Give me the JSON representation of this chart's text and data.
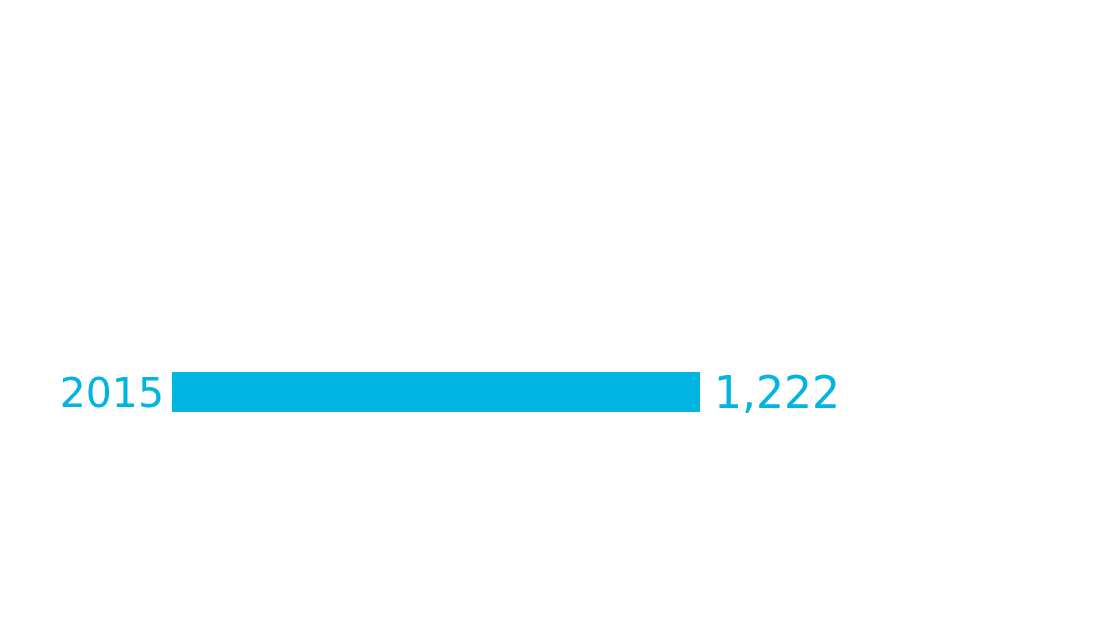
{
  "chart_data": {
    "type": "bar",
    "orientation": "horizontal",
    "categories": [
      "2015"
    ],
    "values": [
      1222
    ],
    "value_labels": [
      "1,222"
    ],
    "color": "#00b5e2"
  }
}
